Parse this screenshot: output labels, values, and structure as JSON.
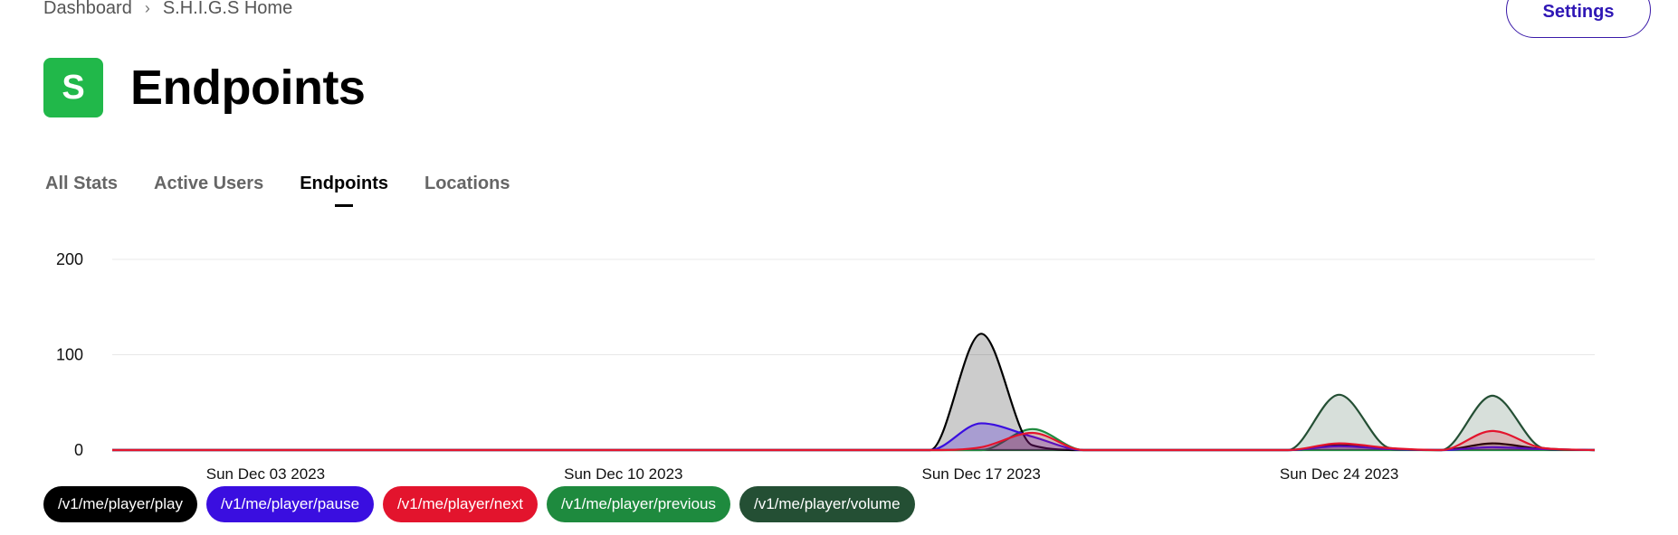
{
  "breadcrumb": {
    "root": "Dashboard",
    "separator": "›",
    "current": "S.H.I.G.S Home"
  },
  "header": {
    "settings_label": "Settings",
    "avatar_letter": "S",
    "title": "Endpoints"
  },
  "tabs": [
    {
      "label": "All Stats",
      "active": false
    },
    {
      "label": "Active Users",
      "active": false
    },
    {
      "label": "Endpoints",
      "active": true
    },
    {
      "label": "Locations",
      "active": false
    }
  ],
  "colors": {
    "accent": "#2f17b5",
    "avatar": "#21b84a",
    "grid": "#e8e8e8"
  },
  "chart_data": {
    "type": "area",
    "title": "",
    "xlabel": "",
    "ylabel": "",
    "x_days": [
      0,
      4,
      8,
      12,
      16,
      17,
      18,
      19,
      20,
      21,
      22,
      23,
      24,
      25,
      26,
      27,
      28,
      29
    ],
    "x_ticks": [
      {
        "day": 3,
        "label": "Sun Dec 03 2023"
      },
      {
        "day": 10,
        "label": "Sun Dec 10 2023"
      },
      {
        "day": 17,
        "label": "Sun Dec 17 2023"
      },
      {
        "day": 24,
        "label": "Sun Dec 24 2023"
      }
    ],
    "x_range": [
      0,
      29
    ],
    "y_ticks": [
      "0",
      "100",
      "200"
    ],
    "ylim": [
      0,
      200
    ],
    "grid": true,
    "legend_position": "bottom",
    "series": [
      {
        "name": "/v1/me/player/volume",
        "color": "#244f34",
        "fill": "rgba(36,79,52,0.18)",
        "values": [
          0,
          0,
          0,
          0,
          0,
          0,
          0,
          0,
          0,
          0,
          0,
          0,
          58,
          2,
          0,
          57,
          2,
          0
        ]
      },
      {
        "name": "/v1/me/player/previous",
        "color": "#1e8a3e",
        "fill": "rgba(30,138,62,0.20)",
        "values": [
          0,
          0,
          0,
          0,
          0,
          0,
          22,
          0,
          0,
          0,
          0,
          0,
          0,
          0,
          0,
          0,
          0,
          0
        ]
      },
      {
        "name": "/v1/me/player/play",
        "color": "#000000",
        "fill": "rgba(0,0,0,0.20)",
        "values": [
          0,
          0,
          0,
          0,
          0,
          122,
          5,
          0,
          0,
          0,
          0,
          0,
          5,
          1,
          0,
          7,
          1,
          0
        ]
      },
      {
        "name": "/v1/me/player/pause",
        "color": "#3a0ee0",
        "fill": "rgba(58,14,224,0.25)",
        "values": [
          0,
          0,
          0,
          0,
          0,
          28,
          14,
          0,
          0,
          0,
          0,
          0,
          4,
          1,
          0,
          3,
          1,
          0
        ]
      },
      {
        "name": "/v1/me/player/next",
        "color": "#e3142d",
        "fill": "rgba(227,20,45,0.20)",
        "values": [
          0,
          0,
          0,
          0,
          0,
          3,
          18,
          0,
          0,
          0,
          0,
          0,
          7,
          2,
          0,
          20,
          2,
          0
        ]
      }
    ],
    "legend": [
      {
        "label": "/v1/me/player/play",
        "color": "#000000"
      },
      {
        "label": "/v1/me/player/pause",
        "color": "#3a0ee0"
      },
      {
        "label": "/v1/me/player/next",
        "color": "#e3142d"
      },
      {
        "label": "/v1/me/player/previous",
        "color": "#1e8a3e"
      },
      {
        "label": "/v1/me/player/volume",
        "color": "#244f34"
      }
    ]
  }
}
